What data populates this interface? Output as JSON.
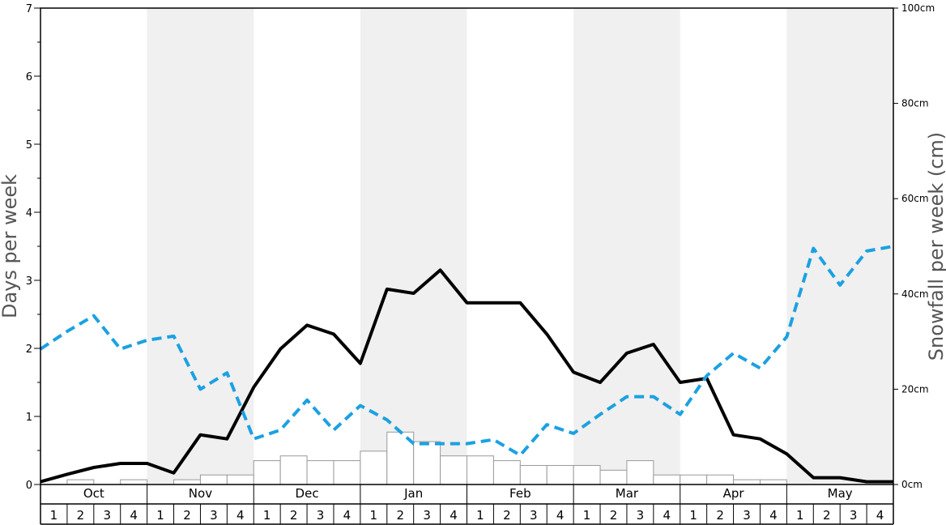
{
  "chart_data": {
    "type": "line",
    "ylabel_left": "Days per week",
    "ylabel_right": "Snowfall per week (cm)",
    "ylim_left": [
      0,
      7
    ],
    "ylim_right": [
      0,
      100
    ],
    "left_ticks": [
      "0",
      "1",
      "2",
      "3",
      "4",
      "5",
      "6",
      "7"
    ],
    "right_ticks": [
      "0cm",
      "20cm",
      "40cm",
      "60cm",
      "80cm",
      "100cm"
    ],
    "months": [
      "Oct",
      "Nov",
      "Dec",
      "Jan",
      "Feb",
      "Mar",
      "Apr",
      "May"
    ],
    "week_labels": [
      "1",
      "2",
      "3",
      "4"
    ],
    "shaded_months": [
      "Nov",
      "Jan",
      "Mar",
      "May"
    ],
    "colors": {
      "solid": "#000000",
      "dashed": "#1ba1e2",
      "bar_edge": "#999999",
      "shade": "#f0f0f0"
    },
    "series": [
      {
        "style": "solid",
        "axis": "left",
        "values": [
          0.04,
          0.15,
          0.25,
          0.31,
          0.31,
          0.17,
          0.73,
          0.67,
          1.43,
          1.99,
          2.34,
          2.21,
          1.78,
          2.87,
          2.81,
          3.15,
          2.67,
          2.67,
          2.67,
          2.21,
          1.65,
          1.5,
          1.93,
          2.06,
          1.5,
          1.56,
          0.73,
          0.67,
          0.45,
          0.1,
          0.1,
          0.04,
          0.04
        ]
      },
      {
        "style": "dashed",
        "axis": "left",
        "values": [
          1.99,
          2.25,
          2.48,
          1.99,
          2.12,
          2.18,
          1.4,
          1.64,
          0.67,
          0.8,
          1.24,
          0.8,
          1.16,
          0.95,
          0.6,
          0.6,
          0.6,
          0.66,
          0.43,
          0.88,
          0.75,
          1.03,
          1.29,
          1.29,
          1.03,
          1.6,
          1.93,
          1.71,
          2.17,
          3.47,
          2.93,
          3.43,
          3.5
        ]
      }
    ],
    "bars": {
      "axis": "right",
      "unit": "cm",
      "values": [
        0,
        1,
        0,
        1,
        0,
        1,
        2,
        2,
        5,
        6,
        5,
        5,
        7,
        11,
        9,
        6,
        6,
        5,
        4,
        4,
        4,
        3,
        5,
        2,
        2,
        2,
        1,
        1,
        0,
        0,
        0,
        0
      ]
    }
  }
}
